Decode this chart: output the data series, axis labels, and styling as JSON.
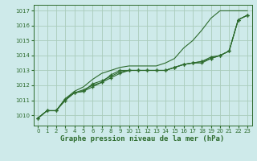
{
  "xlabel": "Graphe pression niveau de la mer (hPa)",
  "xlim": [
    -0.5,
    23.5
  ],
  "ylim": [
    1009.3,
    1017.4
  ],
  "yticks": [
    1010,
    1011,
    1012,
    1013,
    1014,
    1015,
    1016,
    1017
  ],
  "xticks": [
    0,
    1,
    2,
    3,
    4,
    5,
    6,
    7,
    8,
    9,
    10,
    11,
    12,
    13,
    14,
    15,
    16,
    17,
    18,
    19,
    20,
    21,
    22,
    23
  ],
  "bg_color": "#ceeaea",
  "grid_color": "#aaccbb",
  "line_color": "#2d6b2d",
  "series_with_markers": [
    [
      1009.8,
      1010.3,
      1010.3,
      1011.1,
      1011.5,
      1011.7,
      1012.0,
      1012.2,
      1012.7,
      1013.0,
      1013.0,
      1013.0,
      1013.0,
      1013.0,
      1013.0,
      1013.2,
      1013.4,
      1013.5,
      1013.6,
      1013.9,
      1014.0,
      1014.3,
      1016.4,
      1016.7
    ],
    [
      1009.8,
      1010.3,
      1010.3,
      1011.0,
      1011.5,
      1011.6,
      1011.9,
      1012.2,
      1012.5,
      1012.8,
      1013.0,
      1013.0,
      1013.0,
      1013.0,
      1013.0,
      1013.2,
      1013.4,
      1013.5,
      1013.5,
      1013.8,
      1014.0,
      1014.3,
      1016.4,
      1016.7
    ],
    [
      1009.8,
      1010.3,
      1010.3,
      1011.0,
      1011.5,
      1011.6,
      1012.1,
      1012.3,
      1012.6,
      1012.9,
      1013.0,
      1013.0,
      1013.0,
      1013.0,
      1013.0,
      1013.2,
      1013.4,
      1013.5,
      1013.6,
      1013.8,
      1014.0,
      1014.3,
      1016.4,
      1016.7
    ]
  ],
  "series_no_marker": [
    1009.8,
    1010.3,
    1010.3,
    1011.1,
    1011.6,
    1011.9,
    1012.4,
    1012.8,
    1013.0,
    1013.2,
    1013.3,
    1013.3,
    1013.3,
    1013.3,
    1013.5,
    1013.8,
    1014.5,
    1015.0,
    1015.7,
    1016.5,
    1017.0,
    1017.0,
    1017.0,
    1017.0
  ]
}
